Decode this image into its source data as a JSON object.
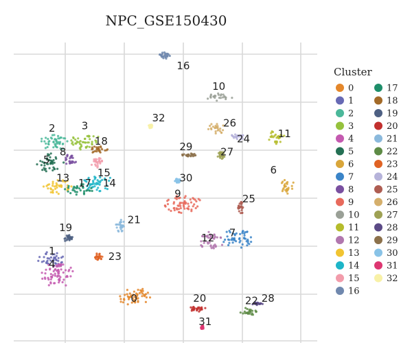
{
  "chart_data": {
    "type": "scatter",
    "title": "NPC_GSE150430",
    "xlabel": "",
    "ylabel": "",
    "grid": true,
    "legend": {
      "title": "Cluster",
      "placement": "right",
      "columns": 2
    },
    "clusters": [
      {
        "id": "0",
        "color": "#E4872B",
        "ellipses": [
          [
            8.3,
            1.8,
            0.6,
            0.35
          ]
        ]
      },
      {
        "id": "1",
        "color": "#6769B4",
        "ellipses": [
          [
            5.3,
            3.2,
            0.55,
            0.3
          ]
        ]
      },
      {
        "id": "2",
        "color": "#4BB89A",
        "ellipses": [
          [
            5.4,
            7.7,
            0.55,
            0.35
          ]
        ]
      },
      {
        "id": "3",
        "color": "#96C23D",
        "ellipses": [
          [
            6.5,
            7.7,
            0.6,
            0.3
          ]
        ]
      },
      {
        "id": "4",
        "color": "#C45AB0",
        "ellipses": [
          [
            5.5,
            2.6,
            0.6,
            0.45
          ]
        ]
      },
      {
        "id": "5",
        "color": "#247054",
        "ellipses": [
          [
            5.2,
            6.9,
            0.5,
            0.35
          ]
        ]
      },
      {
        "id": "6",
        "color": "#D9A63A",
        "ellipses": [
          [
            13.9,
            6.0,
            0.25,
            0.3
          ]
        ]
      },
      {
        "id": "7",
        "color": "#3A84C8",
        "ellipses": [
          [
            12.1,
            4.0,
            0.55,
            0.35
          ]
        ]
      },
      {
        "id": "8",
        "color": "#7A50A0",
        "ellipses": [
          [
            5.95,
            7.0,
            0.25,
            0.25
          ]
        ]
      },
      {
        "id": "9",
        "color": "#E86A5C",
        "ellipses": [
          [
            10.1,
            5.3,
            0.7,
            0.35
          ]
        ]
      },
      {
        "id": "10",
        "color": "#9AA097",
        "ellipses": [
          [
            11.4,
            9.4,
            0.55,
            0.15
          ]
        ]
      },
      {
        "id": "11",
        "color": "#B5BC2C",
        "ellipses": [
          [
            13.5,
            7.9,
            0.3,
            0.3
          ]
        ]
      },
      {
        "id": "12",
        "color": "#B177AE",
        "ellipses": [
          [
            11.1,
            3.9,
            0.45,
            0.35
          ]
        ]
      },
      {
        "id": "13",
        "color": "#F1C431",
        "ellipses": [
          [
            5.5,
            6.0,
            0.5,
            0.3
          ]
        ]
      },
      {
        "id": "14",
        "color": "#1DB5C8",
        "ellipses": [
          [
            7.0,
            6.1,
            0.6,
            0.3
          ]
        ]
      },
      {
        "id": "15",
        "color": "#F29CAB",
        "ellipses": [
          [
            6.9,
            6.9,
            0.25,
            0.2
          ]
        ]
      },
      {
        "id": "16",
        "color": "#7088AE",
        "ellipses": [
          [
            9.4,
            11.0,
            0.3,
            0.15
          ]
        ]
      },
      {
        "id": "17",
        "color": "#1E8E6A",
        "ellipses": [
          [
            6.3,
            5.9,
            0.5,
            0.25
          ]
        ]
      },
      {
        "id": "18",
        "color": "#A36A28",
        "ellipses": [
          [
            7.0,
            7.4,
            0.4,
            0.15
          ]
        ]
      },
      {
        "id": "19",
        "color": "#4E6083",
        "ellipses": [
          [
            5.9,
            4.0,
            0.15,
            0.15
          ]
        ]
      },
      {
        "id": "20",
        "color": "#C2302E",
        "ellipses": [
          [
            10.6,
            1.3,
            0.35,
            0.1
          ]
        ]
      },
      {
        "id": "21",
        "color": "#8BB9DC",
        "ellipses": [
          [
            7.8,
            4.5,
            0.2,
            0.25
          ]
        ]
      },
      {
        "id": "22",
        "color": "#5E8B46",
        "ellipses": [
          [
            12.5,
            1.2,
            0.3,
            0.15
          ]
        ]
      },
      {
        "id": "23",
        "color": "#E06324",
        "ellipses": [
          [
            7.0,
            3.3,
            0.15,
            0.15
          ]
        ]
      },
      {
        "id": "24",
        "color": "#B6B3DA",
        "ellipses": [
          [
            12.1,
            7.9,
            0.25,
            0.12
          ]
        ]
      },
      {
        "id": "25",
        "color": "#AE5D52",
        "ellipses": [
          [
            12.2,
            5.2,
            0.12,
            0.25
          ]
        ]
      },
      {
        "id": "26",
        "color": "#D5AF6C",
        "ellipses": [
          [
            11.3,
            8.2,
            0.3,
            0.25
          ]
        ]
      },
      {
        "id": "27",
        "color": "#9EA154",
        "ellipses": [
          [
            11.5,
            7.2,
            0.15,
            0.15
          ]
        ]
      },
      {
        "id": "28",
        "color": "#5B4A86",
        "ellipses": [
          [
            12.8,
            1.5,
            0.2,
            0.07
          ]
        ]
      },
      {
        "id": "29",
        "color": "#8C714B",
        "ellipses": [
          [
            10.3,
            7.2,
            0.35,
            0.07
          ]
        ]
      },
      {
        "id": "30",
        "color": "#89C3E7",
        "ellipses": [
          [
            9.9,
            6.2,
            0.1,
            0.1
          ]
        ]
      },
      {
        "id": "31",
        "color": "#DD3671",
        "ellipses": [
          [
            10.8,
            0.6,
            0.05,
            0.08
          ]
        ]
      },
      {
        "id": "32",
        "color": "#F8F1A7",
        "ellipses": [
          [
            8.9,
            8.3,
            0.08,
            0.08
          ]
        ]
      }
    ],
    "cluster_labels": [
      {
        "text": "0",
        "x": 8.3,
        "y": 1.7
      },
      {
        "text": "1",
        "x": 5.3,
        "y": 3.5
      },
      {
        "text": "2",
        "x": 5.3,
        "y": 8.2
      },
      {
        "text": "3",
        "x": 6.5,
        "y": 8.3
      },
      {
        "text": "4",
        "x": 5.3,
        "y": 3.0
      },
      {
        "text": "5",
        "x": 5.1,
        "y": 7.0
      },
      {
        "text": "6",
        "x": 13.4,
        "y": 6.6
      },
      {
        "text": "7",
        "x": 11.9,
        "y": 4.2
      },
      {
        "text": "8",
        "x": 5.7,
        "y": 7.3
      },
      {
        "text": "9",
        "x": 9.9,
        "y": 5.7
      },
      {
        "text": "10",
        "x": 11.4,
        "y": 9.8
      },
      {
        "text": "11",
        "x": 13.8,
        "y": 8.0
      },
      {
        "text": "12",
        "x": 11.0,
        "y": 4.0
      },
      {
        "text": "13",
        "x": 5.7,
        "y": 6.3
      },
      {
        "text": "14",
        "x": 7.4,
        "y": 6.1
      },
      {
        "text": "15",
        "x": 7.2,
        "y": 6.5
      },
      {
        "text": "16",
        "x": 10.1,
        "y": 10.6
      },
      {
        "text": "17",
        "x": 6.5,
        "y": 6.1
      },
      {
        "text": "18",
        "x": 7.1,
        "y": 7.7
      },
      {
        "text": "19",
        "x": 5.8,
        "y": 4.4
      },
      {
        "text": "20",
        "x": 10.7,
        "y": 1.7
      },
      {
        "text": "21",
        "x": 8.3,
        "y": 4.7
      },
      {
        "text": "22",
        "x": 12.6,
        "y": 1.6
      },
      {
        "text": "23",
        "x": 7.6,
        "y": 3.3
      },
      {
        "text": "24",
        "x": 12.3,
        "y": 7.8
      },
      {
        "text": "25",
        "x": 12.5,
        "y": 5.5
      },
      {
        "text": "26",
        "x": 11.8,
        "y": 8.4
      },
      {
        "text": "27",
        "x": 11.7,
        "y": 7.3
      },
      {
        "text": "28",
        "x": 13.2,
        "y": 1.7
      },
      {
        "text": "29",
        "x": 10.2,
        "y": 7.5
      },
      {
        "text": "30",
        "x": 10.2,
        "y": 6.3
      },
      {
        "text": "31",
        "x": 10.9,
        "y": 0.8
      },
      {
        "text": "32",
        "x": 9.2,
        "y": 8.6
      }
    ],
    "xlim": [
      3.9,
      15.0
    ],
    "ylim": [
      0,
      11.5
    ]
  }
}
